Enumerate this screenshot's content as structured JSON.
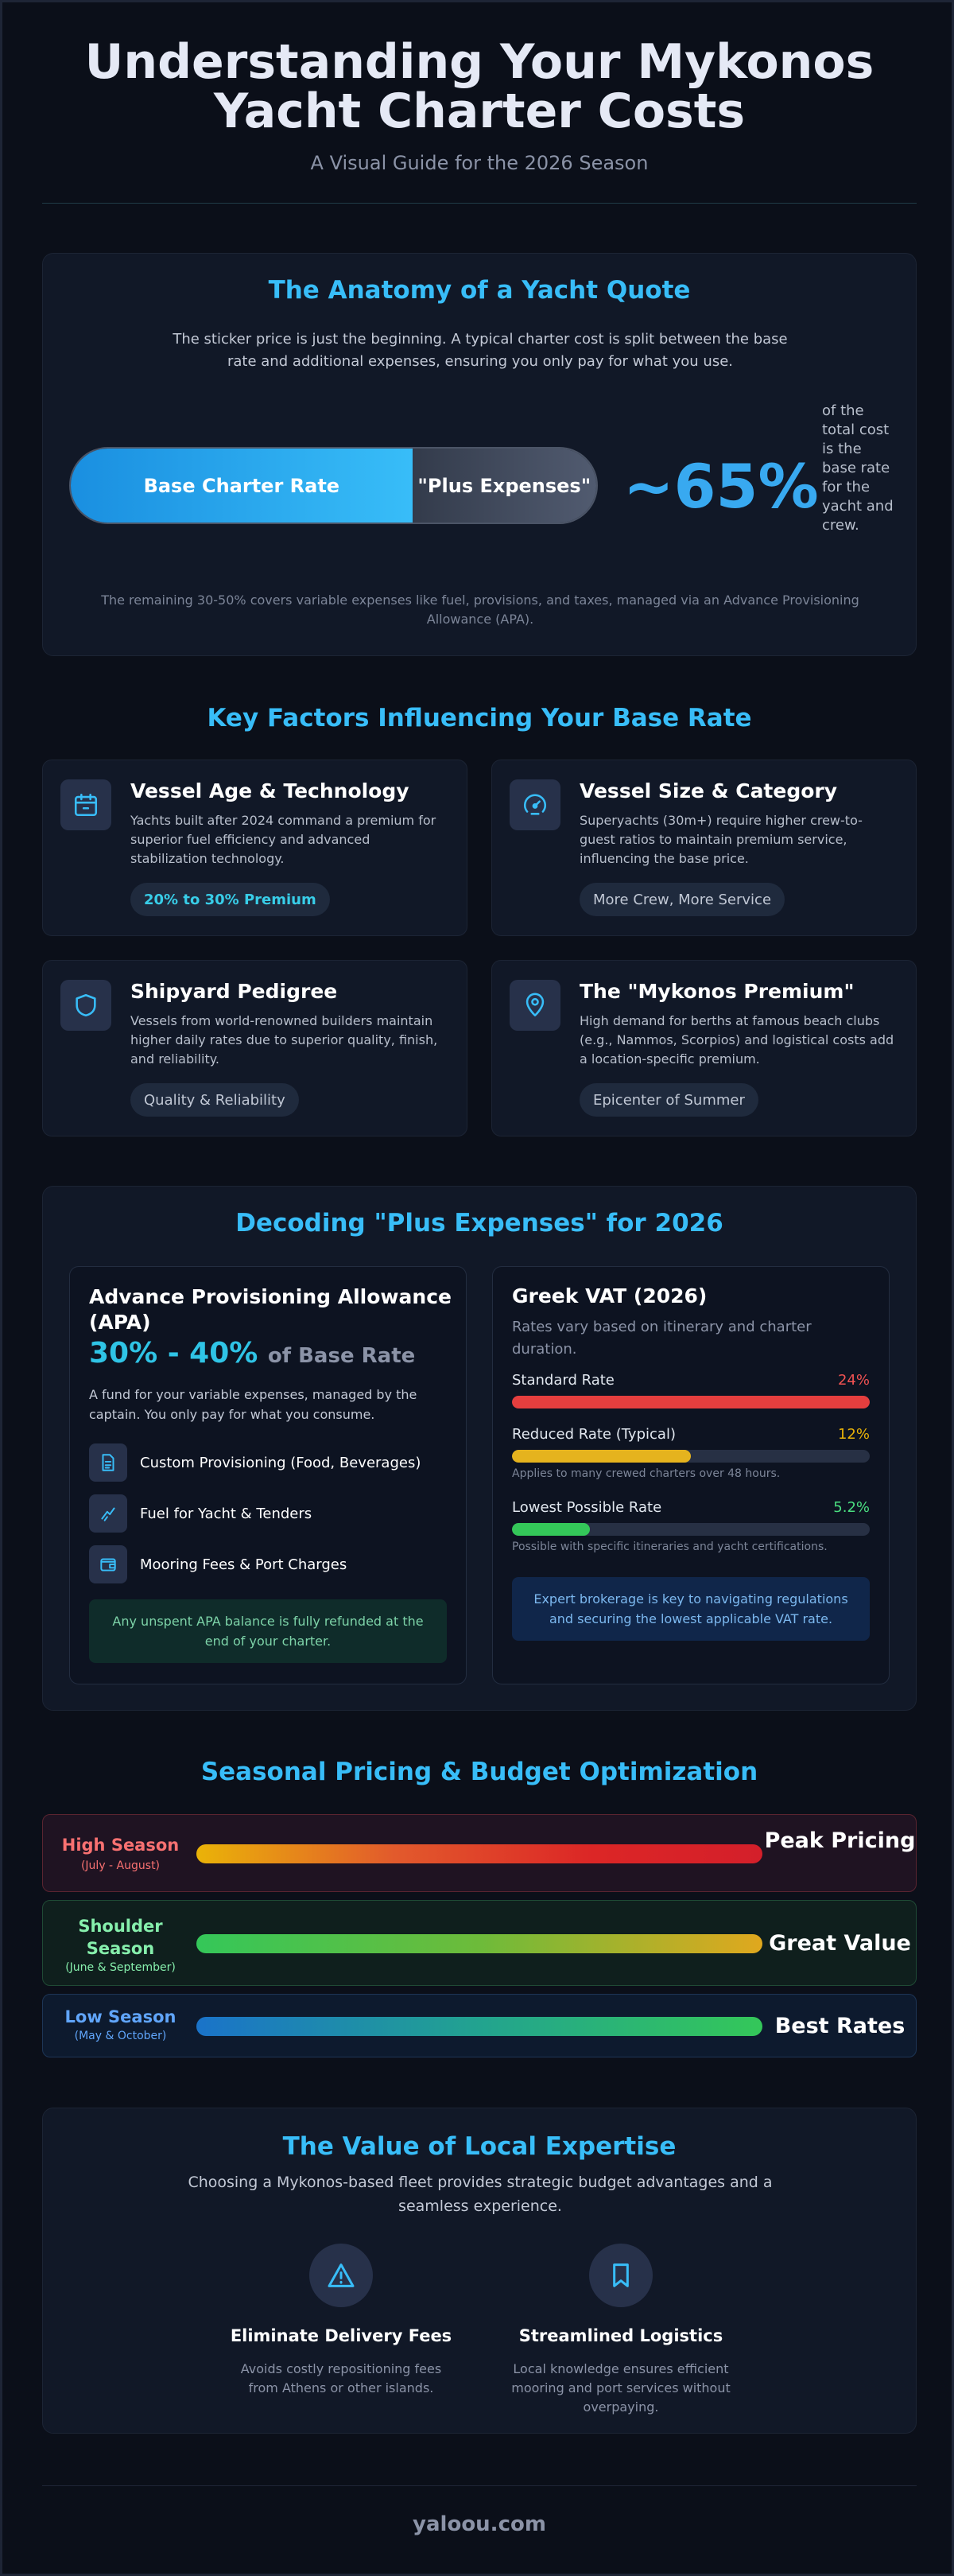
{
  "header": {
    "title_line1": "Understanding Your Mykonos",
    "title_line2": "Yacht Charter Costs",
    "subtitle": "A Visual Guide for the 2026 Season"
  },
  "anatomy": {
    "title": "The Anatomy of a Yacht Quote",
    "description": "The sticker price is just the beginning. A typical charter cost is split between the base rate and additional expenses, ensuring you only pay for what you use.",
    "base_label": "Base Charter Rate",
    "plus_label": "\"Plus Expenses\"",
    "base_share": 0.65,
    "percent": "~65%",
    "percent_note": "of the total cost is the base rate for the yacht and crew.",
    "footnote": "The remaining 30-50% covers variable expenses like fuel, provisions, and taxes, managed via an Advance Provisioning Allowance (APA)."
  },
  "factors": {
    "title": "Key Factors Influencing Your Base Rate",
    "items": [
      {
        "title": "Vessel Age & Technology",
        "desc": "Yachts built after 2024 command a premium for superior fuel efficiency and advanced stabilization technology.",
        "tag": "20% to 30% Premium",
        "icon": "calendar-icon"
      },
      {
        "title": "Vessel Size & Category",
        "desc": "Superyachts (30m+) require higher crew-to-guest ratios to maintain premium service, influencing the base price.",
        "tag": "More Crew, More Service",
        "icon": "gauge-icon"
      },
      {
        "title": "Shipyard Pedigree",
        "desc": "Vessels from world-renowned builders maintain higher daily rates due to superior quality, finish, and reliability.",
        "tag": "Quality & Reliability",
        "icon": "shield-icon"
      },
      {
        "title": "The \"Mykonos Premium\"",
        "desc": "High demand for berths at famous beach clubs (e.g., Nammos, Scorpios) and logistical costs add a location-specific premium.",
        "tag": "Epicenter of Summer",
        "icon": "map-pin-icon"
      }
    ]
  },
  "expenses": {
    "title": "Decoding \"Plus Expenses\" for 2026",
    "apa": {
      "title": "Advance Provisioning Allowance (APA)",
      "rate": "30% - 40%",
      "rate_suffix": "of Base Rate",
      "desc": "A fund for your variable expenses, managed by the captain. You only pay for what you consume.",
      "items": [
        {
          "label": "Custom Provisioning (Food, Beverages)",
          "icon": "document-icon"
        },
        {
          "label": "Fuel for Yacht & Tenders",
          "icon": "fuel-icon"
        },
        {
          "label": "Mooring Fees & Port Charges",
          "icon": "wallet-icon"
        }
      ],
      "note": "Any unspent APA balance is fully refunded at the end of your charter."
    },
    "vat": {
      "title": "Greek VAT (2026)",
      "subtitle": "Rates vary based on itinerary and charter duration.",
      "rates": [
        {
          "label": "Standard Rate",
          "value": "24%",
          "fill": 1.0,
          "color": "#e53e3e",
          "note": ""
        },
        {
          "label": "Reduced Rate (Typical)",
          "value": "12%",
          "fill": 0.5,
          "color": "#e5b31e",
          "note": "Applies to many crewed charters over 48 hours."
        },
        {
          "label": "Lowest Possible Rate",
          "value": "5.2%",
          "fill": 0.217,
          "color": "#34c759",
          "note": "Possible with specific itineraries and yacht certifications."
        }
      ],
      "box": "Expert brokerage is key to navigating regulations and securing the lowest applicable VAT rate."
    }
  },
  "seasons": {
    "title": "Seasonal Pricing & Budget Optimization",
    "items": [
      {
        "name": "High Season",
        "dates": "(July - August)",
        "label": "Peak Pricing"
      },
      {
        "name": "Shoulder Season",
        "dates": "(June & September)",
        "label": "Great Value"
      },
      {
        "name": "Low Season",
        "dates": "(May & October)",
        "label": "Best Rates"
      }
    ]
  },
  "expertise": {
    "title": "The Value of Local Expertise",
    "desc": "Choosing a Mykonos-based fleet provides strategic budget advantages and a seamless experience.",
    "items": [
      {
        "title": "Eliminate Delivery Fees",
        "desc": "Avoids costly repositioning fees from Athens or other islands.",
        "icon": "warning-icon"
      },
      {
        "title": "Streamlined Logistics",
        "desc": "Local knowledge ensures efficient mooring and port services without overpaying.",
        "icon": "bookmark-icon"
      }
    ]
  },
  "footer": {
    "site": "yaloou.com"
  }
}
